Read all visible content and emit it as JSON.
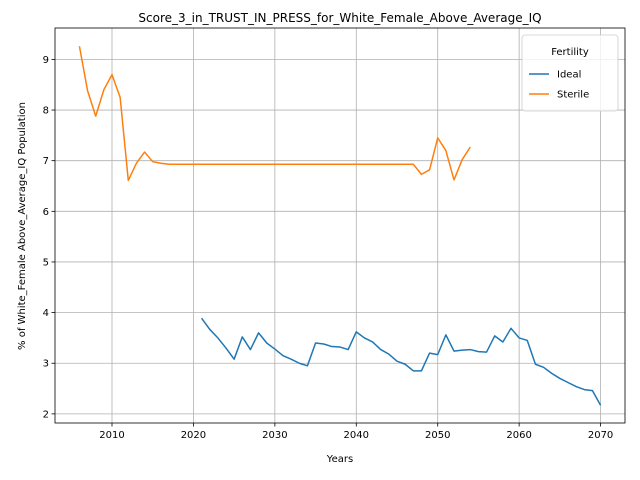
{
  "chart_data": {
    "type": "line",
    "title": "Score_3_in_TRUST_IN_PRESS_for_White_Female_Above_Average_IQ",
    "xlabel": "Years",
    "ylabel": "% of White_Female Above_Average_IQ Population",
    "xlim": [
      2003,
      2073
    ],
    "ylim": [
      1.82,
      9.62
    ],
    "xticks": [
      2010,
      2020,
      2030,
      2040,
      2050,
      2060,
      2070
    ],
    "yticks": [
      2,
      3,
      4,
      5,
      6,
      7,
      8,
      9
    ],
    "grid": true,
    "legend": {
      "title": "Fertility",
      "position": "top-right"
    },
    "series": [
      {
        "name": "Ideal",
        "color": "#1f77b4",
        "x": [
          2021,
          2022,
          2023,
          2024,
          2025,
          2026,
          2027,
          2028,
          2029,
          2030,
          2031,
          2032,
          2033,
          2034,
          2035,
          2036,
          2037,
          2038,
          2039,
          2040,
          2041,
          2042,
          2043,
          2044,
          2045,
          2046,
          2047,
          2048,
          2049,
          2050,
          2051,
          2052,
          2053,
          2054,
          2055,
          2056,
          2057,
          2058,
          2059,
          2060,
          2061,
          2062,
          2063,
          2064,
          2065,
          2066,
          2067,
          2068,
          2069,
          2070
        ],
        "values": [
          3.89,
          3.67,
          3.5,
          3.3,
          3.08,
          3.52,
          3.27,
          3.6,
          3.4,
          3.28,
          3.15,
          3.08,
          3.0,
          2.95,
          3.4,
          3.38,
          3.33,
          3.32,
          3.27,
          3.62,
          3.5,
          3.42,
          3.27,
          3.18,
          3.04,
          2.98,
          2.85,
          2.85,
          3.2,
          3.17,
          3.56,
          3.24,
          3.26,
          3.27,
          3.23,
          3.22,
          3.54,
          3.42,
          3.69,
          3.5,
          3.45,
          2.98,
          2.92,
          2.8,
          2.7,
          2.62,
          2.54,
          2.48,
          2.46,
          2.17
        ]
      },
      {
        "name": "Sterile",
        "color": "#ff7f0e",
        "x": [
          2006,
          2007,
          2008,
          2009,
          2010,
          2011,
          2012,
          2013,
          2014,
          2015,
          2016,
          2017,
          2018,
          2019,
          2020,
          2021,
          2022,
          2023,
          2024,
          2025,
          2026,
          2027,
          2028,
          2029,
          2030,
          2031,
          2032,
          2033,
          2034,
          2035,
          2036,
          2037,
          2038,
          2039,
          2040,
          2041,
          2042,
          2043,
          2044,
          2045,
          2046,
          2047,
          2048,
          2049,
          2050,
          2051,
          2052,
          2053,
          2054
        ],
        "values": [
          9.26,
          8.38,
          7.88,
          8.4,
          8.7,
          8.25,
          6.61,
          6.95,
          7.17,
          6.98,
          6.95,
          6.93,
          6.93,
          6.93,
          6.93,
          6.93,
          6.93,
          6.93,
          6.93,
          6.93,
          6.93,
          6.93,
          6.93,
          6.93,
          6.93,
          6.93,
          6.93,
          6.93,
          6.93,
          6.93,
          6.93,
          6.93,
          6.93,
          6.93,
          6.93,
          6.93,
          6.93,
          6.93,
          6.93,
          6.93,
          6.93,
          6.93,
          6.73,
          6.82,
          7.45,
          7.2,
          6.62,
          7.02,
          7.27
        ]
      }
    ]
  }
}
